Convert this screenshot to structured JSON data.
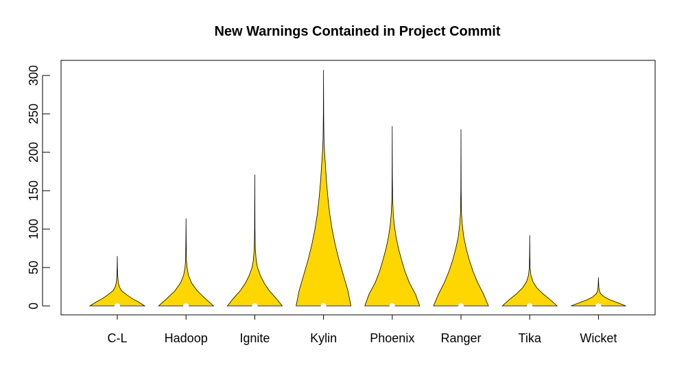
{
  "chart_data": {
    "type": "violin",
    "title": "New Warnings Contained in Project Commit",
    "xlabel": "",
    "ylabel": "",
    "ylim": [
      -12,
      320
    ],
    "yticks": [
      0,
      50,
      100,
      150,
      200,
      250,
      300
    ],
    "categories": [
      "C-L",
      "Hadoop",
      "Ignite",
      "Kylin",
      "Phoenix",
      "Ranger",
      "Tika",
      "Wicket"
    ],
    "series": [
      {
        "category": "C-L",
        "min": 0,
        "max": 65,
        "median": 0,
        "density": [
          [
            0,
            0.8
          ],
          [
            5,
            0.62
          ],
          [
            10,
            0.42
          ],
          [
            15,
            0.26
          ],
          [
            20,
            0.12
          ],
          [
            25,
            0.06
          ],
          [
            30,
            0.03
          ],
          [
            40,
            0.012
          ],
          [
            50,
            0.005
          ],
          [
            65,
            0
          ]
        ]
      },
      {
        "category": "Hadoop",
        "min": 0,
        "max": 114,
        "median": 0,
        "density": [
          [
            0,
            0.8
          ],
          [
            10,
            0.55
          ],
          [
            20,
            0.32
          ],
          [
            30,
            0.16
          ],
          [
            40,
            0.07
          ],
          [
            50,
            0.03
          ],
          [
            60,
            0.012
          ],
          [
            80,
            0.006
          ],
          [
            114,
            0
          ]
        ]
      },
      {
        "category": "Ignite",
        "min": 0,
        "max": 171,
        "median": 0,
        "density": [
          [
            0,
            0.8
          ],
          [
            10,
            0.62
          ],
          [
            20,
            0.42
          ],
          [
            30,
            0.27
          ],
          [
            40,
            0.16
          ],
          [
            50,
            0.08
          ],
          [
            60,
            0.04
          ],
          [
            75,
            0.015
          ],
          [
            100,
            0.006
          ],
          [
            171,
            0
          ]
        ]
      },
      {
        "category": "Kylin",
        "min": 0,
        "max": 307,
        "median": 0,
        "density": [
          [
            0,
            0.8
          ],
          [
            20,
            0.71
          ],
          [
            40,
            0.58
          ],
          [
            60,
            0.45
          ],
          [
            80,
            0.34
          ],
          [
            100,
            0.25
          ],
          [
            120,
            0.18
          ],
          [
            140,
            0.13
          ],
          [
            160,
            0.09
          ],
          [
            180,
            0.06
          ],
          [
            200,
            0.03
          ],
          [
            220,
            0.012
          ],
          [
            250,
            0.005
          ],
          [
            307,
            0
          ]
        ]
      },
      {
        "category": "Phoenix",
        "min": 0,
        "max": 234,
        "median": 0,
        "density": [
          [
            0,
            0.8
          ],
          [
            15,
            0.68
          ],
          [
            30,
            0.5
          ],
          [
            45,
            0.37
          ],
          [
            60,
            0.27
          ],
          [
            75,
            0.18
          ],
          [
            90,
            0.11
          ],
          [
            105,
            0.06
          ],
          [
            120,
            0.03
          ],
          [
            140,
            0.01
          ],
          [
            170,
            0.004
          ],
          [
            234,
            0
          ]
        ]
      },
      {
        "category": "Ranger",
        "min": 0,
        "max": 230,
        "median": 0,
        "density": [
          [
            0,
            0.8
          ],
          [
            15,
            0.66
          ],
          [
            30,
            0.49
          ],
          [
            45,
            0.35
          ],
          [
            60,
            0.24
          ],
          [
            75,
            0.15
          ],
          [
            90,
            0.08
          ],
          [
            105,
            0.04
          ],
          [
            120,
            0.015
          ],
          [
            150,
            0.005
          ],
          [
            230,
            0
          ]
        ]
      },
      {
        "category": "Tika",
        "min": 0,
        "max": 92,
        "median": 0,
        "density": [
          [
            0,
            0.8
          ],
          [
            8,
            0.6
          ],
          [
            16,
            0.38
          ],
          [
            24,
            0.2
          ],
          [
            32,
            0.09
          ],
          [
            40,
            0.035
          ],
          [
            50,
            0.012
          ],
          [
            65,
            0.005
          ],
          [
            92,
            0
          ]
        ]
      },
      {
        "category": "Wicket",
        "min": 0,
        "max": 37,
        "median": 0,
        "density": [
          [
            0,
            0.8
          ],
          [
            4,
            0.57
          ],
          [
            8,
            0.33
          ],
          [
            12,
            0.16
          ],
          [
            16,
            0.06
          ],
          [
            20,
            0.025
          ],
          [
            25,
            0.01
          ],
          [
            37,
            0
          ]
        ]
      }
    ],
    "colors": {
      "fill": "#FFD700",
      "outline": "#000000",
      "median": "#FFFFFF"
    },
    "grid": false,
    "legend": "none"
  }
}
